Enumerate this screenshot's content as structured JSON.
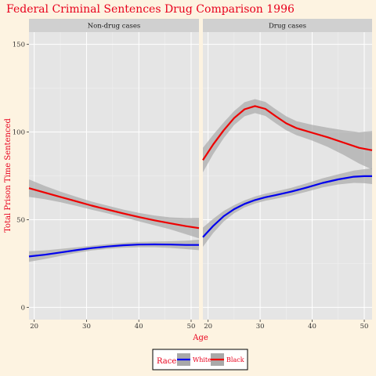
{
  "colors": {
    "background": "#fdf3e1",
    "panel": "#e5e5e5",
    "strip": "#d0d0d0",
    "text_accent": "#e8001c",
    "white_series": "#0000ee",
    "black_series": "#ee0000",
    "ribbon": "#a9a9a9"
  },
  "chart_data": {
    "type": "line",
    "title": "Federal Criminal Sentences Drug Comparison 1996",
    "xlabel": "Age",
    "ylabel": "Total Prison Time Sentenced",
    "xlim": [
      19,
      51.5
    ],
    "ylim": [
      -7,
      157
    ],
    "x_ticks": [
      20,
      30,
      40,
      50
    ],
    "y_ticks": [
      0,
      50,
      100,
      150
    ],
    "grid": true,
    "legend": {
      "title": "Race",
      "position": "bottom",
      "entries": [
        {
          "label": "White",
          "color": "#0000ee"
        },
        {
          "label": "Black",
          "color": "#ee0000"
        }
      ]
    },
    "panels": [
      {
        "label": "Non-drug cases",
        "series": [
          {
            "name": "White",
            "x": [
              19,
              22,
              25,
              28,
              31,
              34,
              37,
              40,
              43,
              46,
              49,
              51.5
            ],
            "y": [
              29,
              30,
              31.3,
              32.6,
              33.8,
              34.7,
              35.4,
              35.8,
              35.9,
              35.8,
              35.6,
              35.6
            ],
            "ci": [
              3,
              2.5,
              2,
              1.6,
              1.4,
              1.4,
              1.4,
              1.5,
              1.6,
              1.9,
              2.4,
              3
            ]
          },
          {
            "name": "Black",
            "x": [
              19,
              22,
              25,
              28,
              31,
              34,
              37,
              40,
              43,
              46,
              49,
              51.5
            ],
            "y": [
              68,
              65.5,
              63,
              60.5,
              58,
              55.8,
              53.6,
              51.5,
              49.6,
              47.9,
              46.3,
              45.2
            ],
            "ci": [
              5,
              3.8,
              3,
              2.6,
              2.3,
              2.2,
              2.2,
              2.4,
              2.8,
              3.4,
              4.6,
              5.8
            ]
          }
        ]
      },
      {
        "label": "Drug cases",
        "series": [
          {
            "name": "White",
            "x": [
              19,
              21,
              23,
              25,
              27,
              29,
              31,
              33,
              36,
              39,
              42,
              45,
              48,
              50,
              51.5
            ],
            "y": [
              40,
              46.5,
              52,
              56,
              59,
              61.2,
              62.8,
              64,
              66,
              68.4,
              71,
              73,
              74.5,
              74.8,
              74.8
            ],
            "ci": [
              5.5,
              4,
              3,
              2.3,
              2,
              2,
              2,
              2.1,
              2.2,
              2.4,
              2.6,
              2.9,
              3.5,
              4,
              4.5
            ]
          },
          {
            "name": "Black",
            "x": [
              19,
              21,
              23,
              25,
              27,
              29,
              31,
              33,
              35,
              37,
              40,
              43,
              46,
              49,
              51.5
            ],
            "y": [
              84,
              93,
              101,
              108,
              113,
              114.8,
              113.2,
              109,
              105,
              102.2,
              99.6,
              97,
              94,
              91,
              89.6
            ],
            "ci": [
              7,
              5.5,
              4.5,
              4,
              4,
              4,
              4,
              4,
              4,
              4,
              4.5,
              5.5,
              7,
              9,
              11
            ]
          }
        ]
      }
    ]
  }
}
